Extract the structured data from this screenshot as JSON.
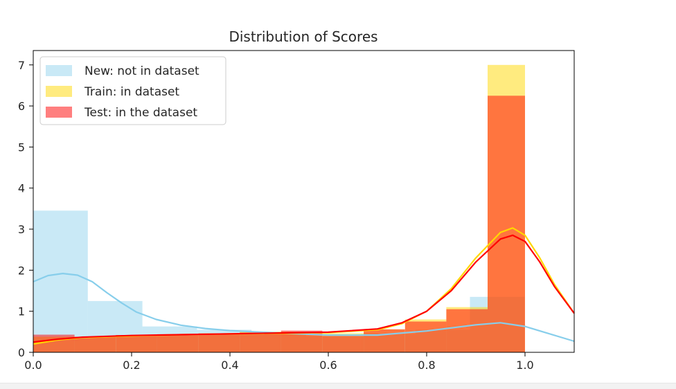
{
  "chart_data": {
    "type": "bar",
    "title": "Distribution of Scores",
    "xlabel": "",
    "ylabel": "",
    "xlim": [
      0.0,
      1.1
    ],
    "ylim": [
      0,
      7.35
    ],
    "xticks": [
      "0.0",
      "0.2",
      "0.4",
      "0.6",
      "0.8",
      "1.0"
    ],
    "yticks": [
      "0",
      "1",
      "2",
      "3",
      "4",
      "5",
      "6",
      "7"
    ],
    "grid": false,
    "legend_position": "top-left",
    "series": [
      {
        "name": "New: not in dataset",
        "color": "#87ceeb",
        "line_color": "#87ceeb",
        "alpha": 0.45,
        "bins": [
          {
            "x0": 0.0,
            "x1": 0.111,
            "value": 3.45
          },
          {
            "x0": 0.111,
            "x1": 0.222,
            "value": 1.25
          },
          {
            "x0": 0.222,
            "x1": 0.333,
            "value": 0.63
          },
          {
            "x0": 0.333,
            "x1": 0.444,
            "value": 0.55
          },
          {
            "x0": 0.444,
            "x1": 0.555,
            "value": 0.5
          },
          {
            "x0": 0.555,
            "x1": 0.666,
            "value": 0.4
          },
          {
            "x0": 0.666,
            "x1": 0.777,
            "value": 0.45
          },
          {
            "x0": 0.777,
            "x1": 0.888,
            "value": 0.55
          },
          {
            "x0": 0.888,
            "x1": 0.999,
            "value": 1.35
          }
        ],
        "kde": [
          [
            0.0,
            1.72
          ],
          [
            0.03,
            1.87
          ],
          [
            0.06,
            1.92
          ],
          [
            0.09,
            1.88
          ],
          [
            0.12,
            1.72
          ],
          [
            0.15,
            1.45
          ],
          [
            0.18,
            1.2
          ],
          [
            0.21,
            0.98
          ],
          [
            0.25,
            0.8
          ],
          [
            0.3,
            0.66
          ],
          [
            0.35,
            0.58
          ],
          [
            0.4,
            0.53
          ],
          [
            0.5,
            0.47
          ],
          [
            0.6,
            0.42
          ],
          [
            0.7,
            0.42
          ],
          [
            0.8,
            0.52
          ],
          [
            0.9,
            0.67
          ],
          [
            0.95,
            0.72
          ],
          [
            1.0,
            0.63
          ],
          [
            1.05,
            0.45
          ],
          [
            1.1,
            0.27
          ]
        ]
      },
      {
        "name": "Train: in dataset",
        "color": "#ffd700",
        "line_color": "#ffd700",
        "alpha": 0.5,
        "bins": [
          {
            "x0": 0.0,
            "x1": 0.084,
            "value": 0.38
          },
          {
            "x0": 0.084,
            "x1": 0.168,
            "value": 0.38
          },
          {
            "x0": 0.168,
            "x1": 0.252,
            "value": 0.42
          },
          {
            "x0": 0.252,
            "x1": 0.336,
            "value": 0.44
          },
          {
            "x0": 0.336,
            "x1": 0.42,
            "value": 0.46
          },
          {
            "x0": 0.42,
            "x1": 0.504,
            "value": 0.5
          },
          {
            "x0": 0.504,
            "x1": 0.588,
            "value": 0.5
          },
          {
            "x0": 0.588,
            "x1": 0.672,
            "value": 0.46
          },
          {
            "x0": 0.672,
            "x1": 0.756,
            "value": 0.56
          },
          {
            "x0": 0.756,
            "x1": 0.84,
            "value": 0.8
          },
          {
            "x0": 0.84,
            "x1": 0.924,
            "value": 1.1
          },
          {
            "x0": 0.924,
            "x1": 1.0,
            "value": 7.0
          }
        ],
        "kde": [
          [
            0.0,
            0.2
          ],
          [
            0.05,
            0.3
          ],
          [
            0.1,
            0.36
          ],
          [
            0.2,
            0.4
          ],
          [
            0.3,
            0.43
          ],
          [
            0.4,
            0.45
          ],
          [
            0.5,
            0.46
          ],
          [
            0.6,
            0.48
          ],
          [
            0.7,
            0.55
          ],
          [
            0.75,
            0.7
          ],
          [
            0.8,
            1.0
          ],
          [
            0.85,
            1.55
          ],
          [
            0.9,
            2.3
          ],
          [
            0.95,
            2.92
          ],
          [
            0.975,
            3.03
          ],
          [
            1.0,
            2.85
          ],
          [
            1.03,
            2.3
          ],
          [
            1.06,
            1.65
          ],
          [
            1.1,
            0.95
          ]
        ]
      },
      {
        "name": "Test: in the dataset",
        "color": "#ff0000",
        "line_color": "#ff0000",
        "alpha": 0.5,
        "bins": [
          {
            "x0": 0.0,
            "x1": 0.084,
            "value": 0.43
          },
          {
            "x0": 0.084,
            "x1": 0.168,
            "value": 0.38
          },
          {
            "x0": 0.168,
            "x1": 0.252,
            "value": 0.42
          },
          {
            "x0": 0.252,
            "x1": 0.336,
            "value": 0.44
          },
          {
            "x0": 0.336,
            "x1": 0.42,
            "value": 0.46
          },
          {
            "x0": 0.42,
            "x1": 0.504,
            "value": 0.48
          },
          {
            "x0": 0.504,
            "x1": 0.588,
            "value": 0.53
          },
          {
            "x0": 0.588,
            "x1": 0.672,
            "value": 0.4
          },
          {
            "x0": 0.672,
            "x1": 0.756,
            "value": 0.56
          },
          {
            "x0": 0.756,
            "x1": 0.84,
            "value": 0.75
          },
          {
            "x0": 0.84,
            "x1": 0.924,
            "value": 1.05
          },
          {
            "x0": 0.924,
            "x1": 1.0,
            "value": 6.25
          }
        ],
        "kde": [
          [
            0.0,
            0.25
          ],
          [
            0.05,
            0.32
          ],
          [
            0.1,
            0.37
          ],
          [
            0.2,
            0.41
          ],
          [
            0.3,
            0.43
          ],
          [
            0.4,
            0.45
          ],
          [
            0.5,
            0.47
          ],
          [
            0.6,
            0.49
          ],
          [
            0.7,
            0.57
          ],
          [
            0.75,
            0.72
          ],
          [
            0.8,
            1.0
          ],
          [
            0.85,
            1.5
          ],
          [
            0.9,
            2.2
          ],
          [
            0.95,
            2.76
          ],
          [
            0.975,
            2.85
          ],
          [
            1.0,
            2.7
          ],
          [
            1.03,
            2.2
          ],
          [
            1.06,
            1.6
          ],
          [
            1.1,
            0.95
          ]
        ]
      }
    ]
  }
}
